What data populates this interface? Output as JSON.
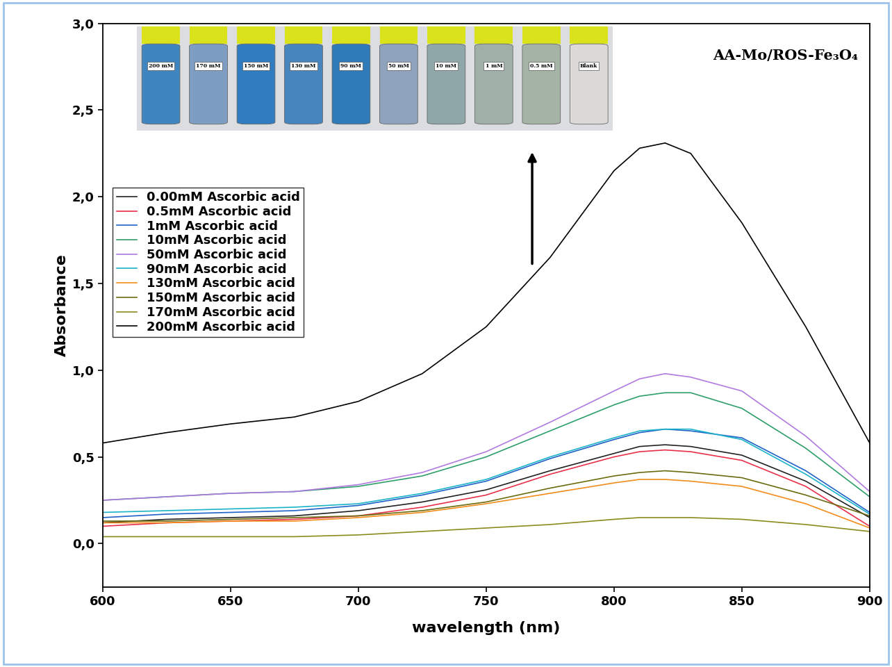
{
  "chart_data": {
    "type": "line",
    "annotation": "AA-Mo/ROS-Fe₃O₄",
    "inset_labels": [
      "200 mM",
      "170 mM",
      "150 mM",
      "130 mM",
      "90 mM",
      "50 mM",
      "10 mM",
      "1 mM",
      "0.5 mM",
      "Blank"
    ],
    "x_label": "wavelength (nm)",
    "y_label": "Absorbance",
    "x": [
      600,
      625,
      650,
      675,
      700,
      725,
      750,
      775,
      800,
      810,
      820,
      830,
      850,
      875,
      900
    ],
    "series": [
      {
        "name": "0.00mM Ascorbic acid",
        "color": "#222222",
        "values": [
          0.12,
          0.14,
          0.15,
          0.16,
          0.19,
          0.24,
          0.31,
          0.42,
          0.52,
          0.56,
          0.57,
          0.56,
          0.51,
          0.36,
          0.15
        ]
      },
      {
        "name": "0.5mM Ascorbic acid",
        "color": "#e8304a",
        "values": [
          0.1,
          0.12,
          0.13,
          0.14,
          0.16,
          0.21,
          0.28,
          0.4,
          0.5,
          0.53,
          0.54,
          0.53,
          0.48,
          0.33,
          0.1
        ]
      },
      {
        "name": "1mM Ascorbic acid",
        "color": "#1f62c8",
        "values": [
          0.15,
          0.17,
          0.18,
          0.19,
          0.22,
          0.28,
          0.36,
          0.49,
          0.6,
          0.64,
          0.66,
          0.65,
          0.61,
          0.42,
          0.18
        ]
      },
      {
        "name": "10mM Ascorbic acid",
        "color": "#2e9e6a",
        "values": [
          0.25,
          0.27,
          0.29,
          0.3,
          0.33,
          0.39,
          0.5,
          0.65,
          0.8,
          0.85,
          0.87,
          0.87,
          0.78,
          0.55,
          0.27
        ]
      },
      {
        "name": "50mM Ascorbic acid",
        "color": "#b07ae0",
        "values": [
          0.25,
          0.27,
          0.29,
          0.3,
          0.34,
          0.41,
          0.53,
          0.7,
          0.88,
          0.95,
          0.98,
          0.96,
          0.88,
          0.62,
          0.3
        ]
      },
      {
        "name": "90mM Ascorbic acid",
        "color": "#1bb3c9",
        "values": [
          0.18,
          0.19,
          0.2,
          0.21,
          0.23,
          0.29,
          0.37,
          0.5,
          0.61,
          0.65,
          0.66,
          0.66,
          0.6,
          0.4,
          0.17
        ]
      },
      {
        "name": "130mM Ascorbic acid",
        "color": "#f28c1a",
        "values": [
          0.12,
          0.12,
          0.13,
          0.13,
          0.15,
          0.18,
          0.23,
          0.29,
          0.35,
          0.37,
          0.37,
          0.36,
          0.33,
          0.23,
          0.09
        ]
      },
      {
        "name": "150mM Ascorbic acid",
        "color": "#6b6b10",
        "values": [
          0.13,
          0.13,
          0.14,
          0.15,
          0.16,
          0.19,
          0.24,
          0.32,
          0.39,
          0.41,
          0.42,
          0.41,
          0.38,
          0.28,
          0.16
        ]
      },
      {
        "name": "170mM Ascorbic acid",
        "color": "#8a8a1e",
        "values": [
          0.04,
          0.04,
          0.04,
          0.04,
          0.05,
          0.07,
          0.09,
          0.11,
          0.14,
          0.15,
          0.15,
          0.15,
          0.14,
          0.11,
          0.07
        ]
      },
      {
        "name": "200mM Ascorbic acid",
        "color": "#000000",
        "values": [
          0.58,
          0.64,
          0.69,
          0.73,
          0.82,
          0.98,
          1.25,
          1.65,
          2.15,
          2.28,
          2.31,
          2.25,
          1.85,
          1.25,
          0.58
        ]
      }
    ],
    "xlim": [
      600,
      900
    ],
    "xticks": [
      600,
      650,
      700,
      750,
      800,
      850,
      900
    ],
    "ylim": [
      -0.25,
      3.0
    ],
    "yticks": [
      {
        "value": 0.0,
        "label": "0,0"
      },
      {
        "value": 0.5,
        "label": "0,5"
      },
      {
        "value": 1.0,
        "label": "1,0"
      },
      {
        "value": 1.5,
        "label": "1,5"
      },
      {
        "value": 2.0,
        "label": "2,0"
      },
      {
        "value": 2.5,
        "label": "2,5"
      },
      {
        "value": 3.0,
        "label": "3,0"
      }
    ],
    "legend": "upper left",
    "grid": false
  }
}
